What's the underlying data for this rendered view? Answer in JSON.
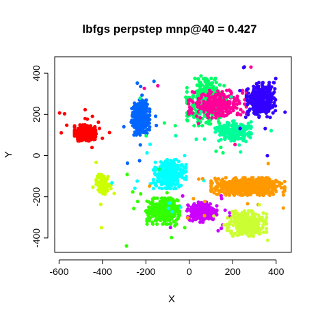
{
  "chart_data": {
    "type": "scatter",
    "title": "lbfgs perpstep mnp@40 = 0.427",
    "xlabel": "X",
    "ylabel": "Y",
    "xlim": [
      -620,
      470
    ],
    "ylim": [
      -470,
      480
    ],
    "xticks": [
      -600,
      -400,
      -200,
      0,
      200,
      400
    ],
    "yticks": [
      -400,
      -200,
      0,
      200,
      400
    ],
    "xtick_labels": [
      "-600",
      "-400",
      "-200",
      "0",
      "200",
      "400"
    ],
    "ytick_labels": [
      "-400",
      "-200",
      "0",
      "200",
      "400"
    ],
    "grid": false,
    "legend": "none",
    "clusters": [
      {
        "color": "#FF0000",
        "center": [
          -480,
          110
        ],
        "spread": [
          40,
          32
        ],
        "count": 420
      },
      {
        "color": "#CCFF00",
        "center": [
          -395,
          -140
        ],
        "spread": [
          28,
          40
        ],
        "count": 120
      },
      {
        "color": "#0066FF",
        "center": [
          -225,
          185
        ],
        "spread": [
          35,
          70
        ],
        "count": 320
      },
      {
        "color": "#33FF00",
        "center": [
          -120,
          -270
        ],
        "spread": [
          62,
          52
        ],
        "count": 380
      },
      {
        "color": "#00FFFF",
        "center": [
          -90,
          -90
        ],
        "spread": [
          62,
          58
        ],
        "count": 300
      },
      {
        "color": "#CC00FF",
        "center": [
          60,
          -275
        ],
        "spread": [
          55,
          40
        ],
        "count": 340
      },
      {
        "color": "#00FF66",
        "center": [
          80,
          260
        ],
        "spread": [
          75,
          95
        ],
        "count": 350
      },
      {
        "color": "#FF0099",
        "center": [
          130,
          250
        ],
        "spread": [
          110,
          55
        ],
        "count": 260
      },
      {
        "color": "#00FF99",
        "center": [
          200,
          120
        ],
        "spread": [
          70,
          40
        ],
        "count": 200
      },
      {
        "color": "#3300FF",
        "center": [
          330,
          270
        ],
        "spread": [
          55,
          70
        ],
        "count": 300
      },
      {
        "color": "#FF9900",
        "center": [
          270,
          -150
        ],
        "spread": [
          140,
          35
        ],
        "count": 520
      },
      {
        "color": "#CCFF33",
        "center": [
          265,
          -330
        ],
        "spread": [
          75,
          50
        ],
        "count": 280
      }
    ]
  }
}
